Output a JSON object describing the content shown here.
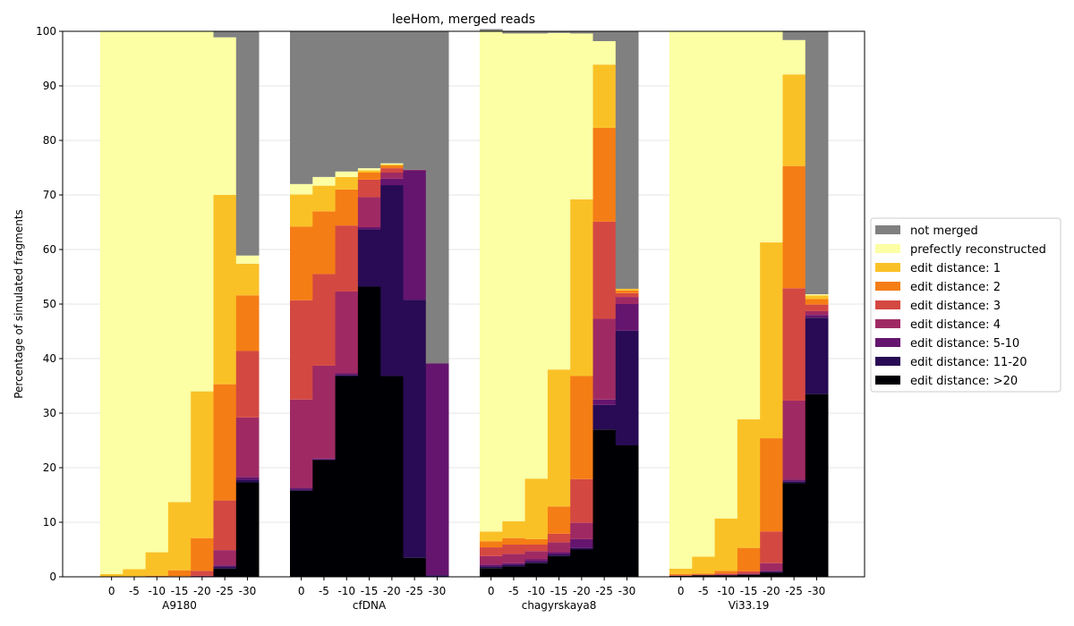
{
  "chart_data": {
    "type": "bar",
    "stacked": true,
    "title": "leeHom, merged reads",
    "xlabel": "",
    "ylabel": "Percentage of simulated fragments",
    "ylim": [
      0,
      100
    ],
    "yticks": [
      0,
      10,
      20,
      30,
      40,
      50,
      60,
      70,
      80,
      90,
      100
    ],
    "grid": "horizontal",
    "legend_position": "right",
    "groups": [
      "A9180",
      "cfDNA",
      "chagyrskaya8",
      "Vi33.19"
    ],
    "conditions": [
      "0",
      "-5",
      "-10",
      "-15",
      "-20",
      "-25",
      "-30"
    ],
    "series": [
      {
        "name": "edit distance: >20",
        "color": "#000004"
      },
      {
        "name": "edit distance: 11-20",
        "color": "#280b54"
      },
      {
        "name": "edit distance: 5-10",
        "color": "#65156e"
      },
      {
        "name": "edit distance: 4",
        "color": "#9f2a63"
      },
      {
        "name": "edit distance: 3",
        "color": "#d44842"
      },
      {
        "name": "edit distance: 2",
        "color": "#f57d15"
      },
      {
        "name": "edit distance: 1",
        "color": "#fac127"
      },
      {
        "name": "prefectly reconstructed",
        "color": "#fcffa4"
      },
      {
        "name": "not merged",
        "color": "#808080"
      }
    ],
    "legend_order": [
      8,
      7,
      6,
      5,
      4,
      3,
      2,
      1,
      0
    ],
    "values": {
      "A9180": [
        [
          0,
          0,
          0,
          0,
          0,
          0,
          0.5,
          99.5,
          0
        ],
        [
          0,
          0,
          0,
          0,
          0,
          0.1,
          1.3,
          98.6,
          0
        ],
        [
          0,
          0,
          0,
          0,
          0,
          0.2,
          4.3,
          95.5,
          0
        ],
        [
          0,
          0,
          0,
          0,
          0.1,
          1.1,
          12.5,
          86.3,
          0
        ],
        [
          0,
          0,
          0,
          0.2,
          0.9,
          6.0,
          26.9,
          66.0,
          0
        ],
        [
          1.5,
          0.3,
          0.3,
          2.8,
          9.1,
          21.3,
          34.7,
          28.9,
          1.1
        ],
        [
          17.3,
          0.5,
          0.5,
          10.9,
          12.2,
          10.2,
          5.8,
          1.5,
          41.1
        ]
      ],
      "cfDNA": [
        [
          15.8,
          0.2,
          0.3,
          16.2,
          18.2,
          13.5,
          5.9,
          1.9,
          28.0
        ],
        [
          21.4,
          0.1,
          0.2,
          17.0,
          16.8,
          11.5,
          4.7,
          1.6,
          26.7
        ],
        [
          36.8,
          0.2,
          0.3,
          15.0,
          12.1,
          6.6,
          2.3,
          1.0,
          25.7
        ],
        [
          53.2,
          10.5,
          0.4,
          5.5,
          3.2,
          1.3,
          0.4,
          0.4,
          25.1
        ],
        [
          36.8,
          35.0,
          1.2,
          1.1,
          0.8,
          0.5,
          0.2,
          0.2,
          24.2
        ],
        [
          3.5,
          47.3,
          23.7,
          0.1,
          0,
          0,
          0,
          0,
          25.4
        ],
        [
          0,
          0.3,
          38.8,
          0,
          0,
          0,
          0,
          0,
          60.9
        ]
      ],
      "chagyrskaya8": [
        [
          1.6,
          0.3,
          0.3,
          1.6,
          1.6,
          1.1,
          1.8,
          91.8,
          0.3
        ],
        [
          1.9,
          0.3,
          0.3,
          1.7,
          1.7,
          1.2,
          3.1,
          89.4,
          0.4
        ],
        [
          2.5,
          0.3,
          0.4,
          1.5,
          1.2,
          1.0,
          11.1,
          81.6,
          0.4
        ],
        [
          3.8,
          0.3,
          0.4,
          1.8,
          1.6,
          5.0,
          25.1,
          61.7,
          0.3
        ],
        [
          5.0,
          0.3,
          1.6,
          3.0,
          8.0,
          18.9,
          32.4,
          30.4,
          0.4
        ],
        [
          27.0,
          4.5,
          1.0,
          14.8,
          17.8,
          17.2,
          11.6,
          4.3,
          1.8
        ],
        [
          24.1,
          21.0,
          4.9,
          1.3,
          0.7,
          0.5,
          0.3,
          0,
          47.2
        ]
      ],
      "Vi33.19": [
        [
          0.2,
          0,
          0,
          0,
          0.1,
          0.2,
          1.0,
          98.5,
          0
        ],
        [
          0.3,
          0,
          0,
          0,
          0.1,
          0.2,
          3.1,
          96.3,
          0
        ],
        [
          0.3,
          0,
          0,
          0.1,
          0.2,
          0.5,
          9.6,
          89.3,
          0
        ],
        [
          0.4,
          0,
          0,
          0.2,
          0.4,
          4.3,
          23.6,
          71.1,
          0
        ],
        [
          0.8,
          0.1,
          0.2,
          1.4,
          5.8,
          17.1,
          35.9,
          38.7,
          0
        ],
        [
          17.2,
          0.3,
          0.3,
          14.5,
          20.6,
          22.4,
          16.8,
          6.3,
          1.6
        ],
        [
          33.5,
          14.0,
          0.5,
          0.7,
          1.2,
          1.0,
          0.7,
          0.2,
          48.2
        ]
      ]
    }
  }
}
